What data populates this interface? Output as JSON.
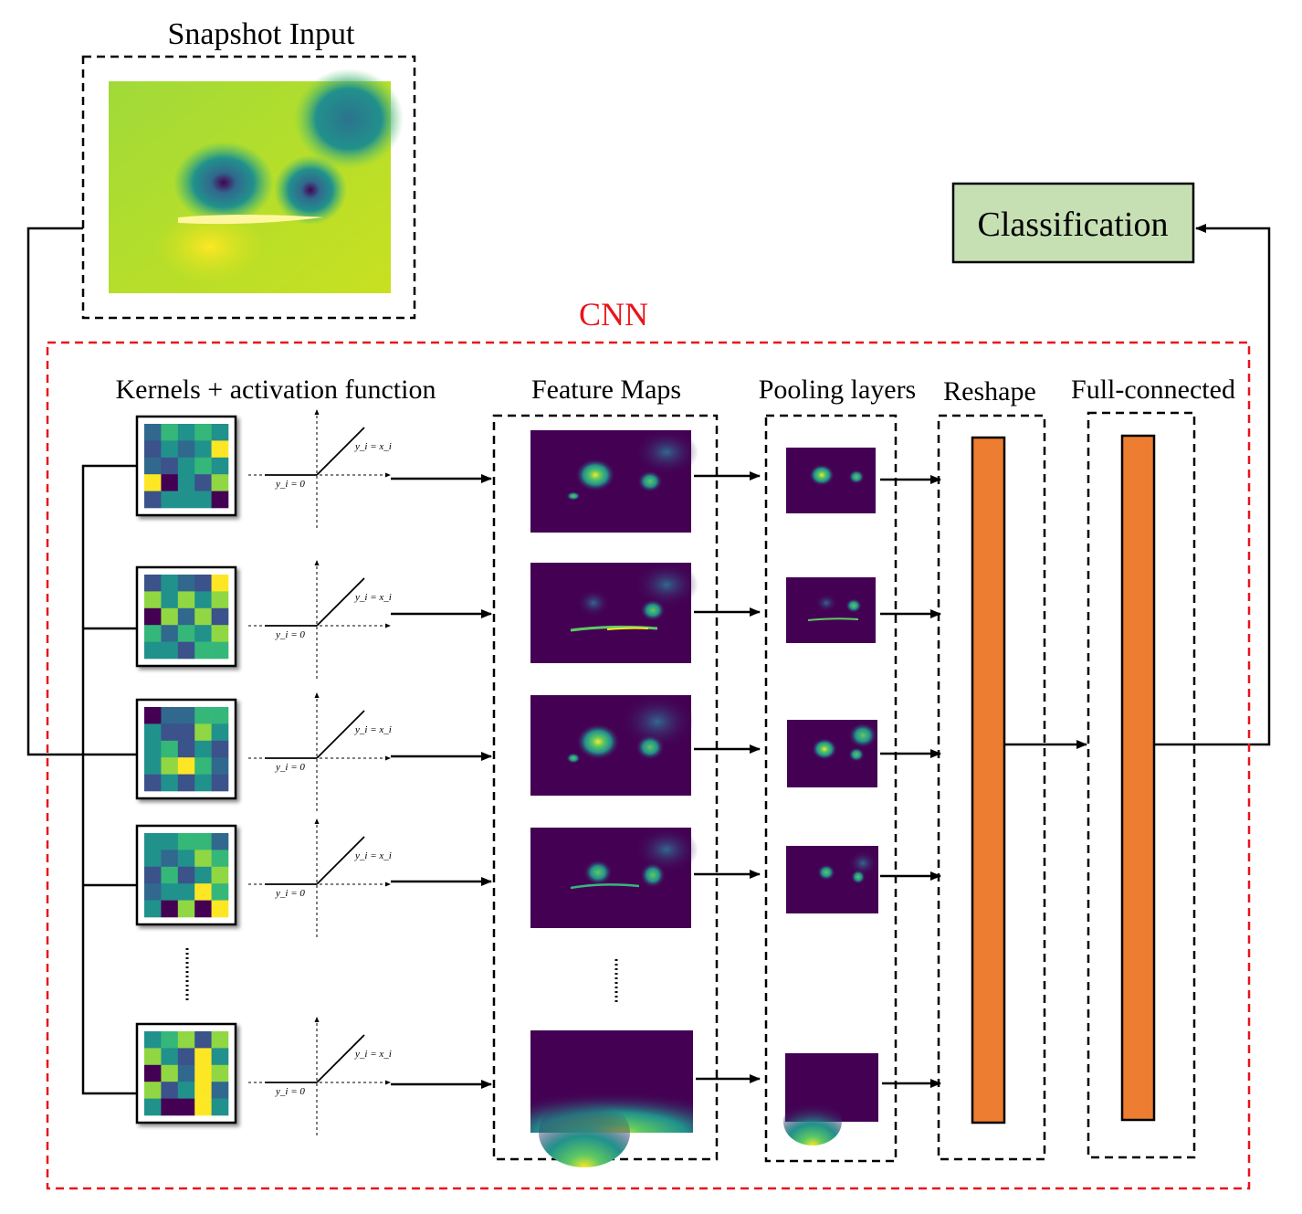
{
  "title": "Snapshot Input",
  "cnn_label": "CNN",
  "classification_label": "Classification",
  "section_labels": {
    "kernels": "Kernels + activation function",
    "feature_maps": "Feature Maps",
    "pooling": "Pooling layers",
    "reshape": "Reshape",
    "full_connected": "Full-connected"
  },
  "relu": {
    "positive": "y_i = x_i",
    "zero": "y_i = 0"
  },
  "colors": {
    "cnn_border": "#e8141b",
    "classification_fill": "#c6e0b4",
    "bar_fill": "#ed7d31",
    "viridis_dark": "#440154",
    "viridis_yellow": "#fde725"
  },
  "kernels": [
    [
      "#31688e",
      "#35b779",
      "#21918c",
      "#35b779",
      "#21918c",
      "#3b528b",
      "#21918c",
      "#31688e",
      "#21918c",
      "#fde725",
      "#31688e",
      "#3b528b",
      "#21918c",
      "#35b779",
      "#21918c",
      "#fde725",
      "#440154",
      "#21918c",
      "#3b528b",
      "#90d743",
      "#3b528b",
      "#21918c",
      "#21918c",
      "#21918c",
      "#440154"
    ],
    [
      "#3b528b",
      "#21918c",
      "#31688e",
      "#3b528b",
      "#fde725",
      "#90d743",
      "#21918c",
      "#90d743",
      "#21918c",
      "#90d743",
      "#440154",
      "#90d743",
      "#31688e",
      "#90d743",
      "#3b528b",
      "#35b779",
      "#31688e",
      "#35b779",
      "#21918c",
      "#90d743",
      "#21918c",
      "#21918c",
      "#3b528b",
      "#35b779",
      "#35b779"
    ],
    [
      "#440154",
      "#31688e",
      "#31688e",
      "#35b779",
      "#35b779",
      "#21918c",
      "#3b528b",
      "#3b528b",
      "#90d743",
      "#21918c",
      "#21918c",
      "#35b779",
      "#3b528b",
      "#21918c",
      "#3b528b",
      "#21918c",
      "#90d743",
      "#fde725",
      "#35b779",
      "#31688e",
      "#3b528b",
      "#21918c",
      "#3b528b",
      "#21918c",
      "#3b528b"
    ],
    [
      "#21918c",
      "#21918c",
      "#35b779",
      "#35b779",
      "#31688e",
      "#21918c",
      "#31688e",
      "#21918c",
      "#90d743",
      "#35b779",
      "#3b528b",
      "#35b779",
      "#3b528b",
      "#21918c",
      "#90d743",
      "#31688e",
      "#21918c",
      "#21918c",
      "#fde725",
      "#35b779",
      "#21918c",
      "#440154",
      "#90d743",
      "#440154",
      "#fde725"
    ],
    [
      "#21918c",
      "#35b779",
      "#90d743",
      "#3b528b",
      "#90d743",
      "#90d743",
      "#21918c",
      "#3b528b",
      "#fde725",
      "#21918c",
      "#440154",
      "#90d743",
      "#31688e",
      "#fde725",
      "#90d743",
      "#90d743",
      "#3b528b",
      "#21918c",
      "#fde725",
      "#31688e",
      "#21918c",
      "#440154",
      "#440154",
      "#fde725",
      "#21918c"
    ]
  ]
}
